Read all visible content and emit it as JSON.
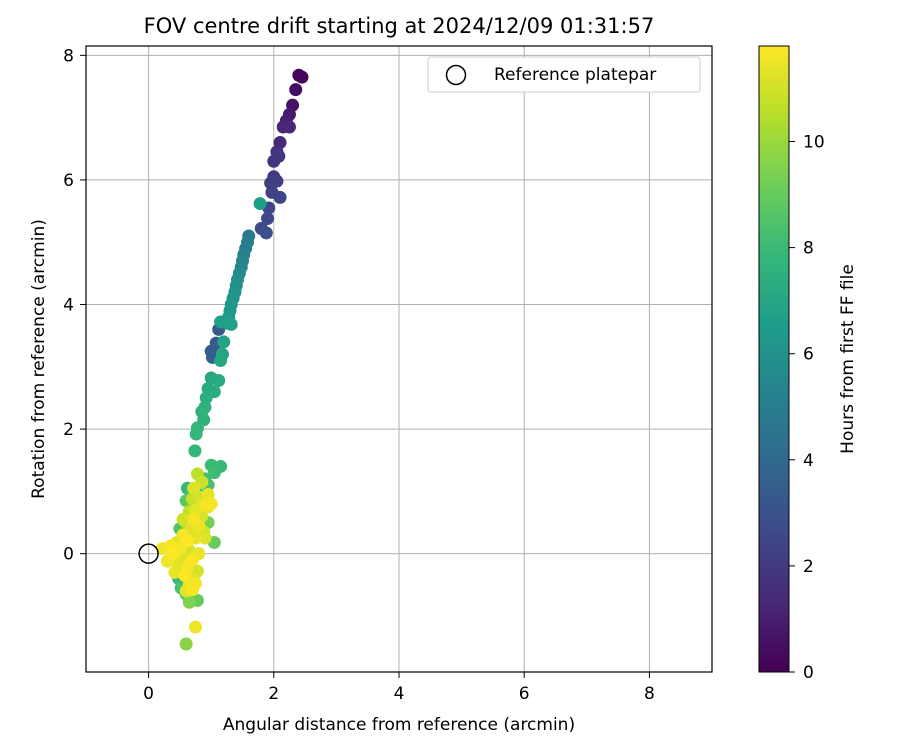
{
  "chart_data": {
    "type": "scatter",
    "title": "FOV centre drift starting at 2024/12/09 01:31:57",
    "xlabel": "Angular distance from reference (arcmin)",
    "ylabel": "Rotation from reference (arcmin)",
    "xlim": [
      -1,
      9
    ],
    "ylim": [
      -1.9,
      8.15
    ],
    "xticks": [
      0,
      2,
      4,
      6,
      8
    ],
    "yticks": [
      0,
      2,
      4,
      6,
      8
    ],
    "grid": true,
    "legend": {
      "position": "top-right",
      "entries": [
        "Reference platepar"
      ]
    },
    "reference_point": {
      "x": 0,
      "y": 0,
      "label": "Reference platepar"
    },
    "colorbar": {
      "label": "Hours from first FF file",
      "range": [
        0,
        11.8
      ],
      "ticks": [
        0,
        2,
        4,
        6,
        8,
        10
      ],
      "colormap": "viridis"
    },
    "colormap_stops": [
      "#440154",
      "#482878",
      "#3e4989",
      "#31688e",
      "#26828e",
      "#1f9e89",
      "#35b779",
      "#6ece58",
      "#b5de2b",
      "#fde725"
    ],
    "points": [
      {
        "x": 2.4,
        "y": 7.68,
        "h": 0.1
      },
      {
        "x": 2.45,
        "y": 7.65,
        "h": 0.2
      },
      {
        "x": 2.35,
        "y": 7.45,
        "h": 0.4
      },
      {
        "x": 2.3,
        "y": 7.2,
        "h": 0.6
      },
      {
        "x": 2.25,
        "y": 7.05,
        "h": 0.8
      },
      {
        "x": 2.2,
        "y": 6.95,
        "h": 1.0
      },
      {
        "x": 2.15,
        "y": 6.85,
        "h": 1.2
      },
      {
        "x": 2.25,
        "y": 6.85,
        "h": 1.3
      },
      {
        "x": 2.1,
        "y": 6.6,
        "h": 1.4
      },
      {
        "x": 2.05,
        "y": 6.45,
        "h": 1.6
      },
      {
        "x": 2.0,
        "y": 6.3,
        "h": 1.8
      },
      {
        "x": 2.08,
        "y": 6.38,
        "h": 1.9
      },
      {
        "x": 2.0,
        "y": 6.05,
        "h": 2.0
      },
      {
        "x": 1.95,
        "y": 5.95,
        "h": 2.1
      },
      {
        "x": 2.05,
        "y": 5.98,
        "h": 2.2
      },
      {
        "x": 1.97,
        "y": 5.8,
        "h": 2.3
      },
      {
        "x": 2.1,
        "y": 5.72,
        "h": 2.4
      },
      {
        "x": 1.92,
        "y": 5.55,
        "h": 2.5
      },
      {
        "x": 1.9,
        "y": 5.38,
        "h": 2.6
      },
      {
        "x": 1.8,
        "y": 5.22,
        "h": 2.7
      },
      {
        "x": 1.88,
        "y": 5.15,
        "h": 2.9
      },
      {
        "x": 1.78,
        "y": 5.62,
        "h": 6.6
      },
      {
        "x": 1.6,
        "y": 5.1,
        "h": 4.8
      },
      {
        "x": 1.58,
        "y": 5.0,
        "h": 5.0
      },
      {
        "x": 1.55,
        "y": 4.9,
        "h": 5.1
      },
      {
        "x": 1.52,
        "y": 4.8,
        "h": 5.2
      },
      {
        "x": 1.5,
        "y": 4.7,
        "h": 5.4
      },
      {
        "x": 1.48,
        "y": 4.6,
        "h": 5.5
      },
      {
        "x": 1.45,
        "y": 4.5,
        "h": 5.6
      },
      {
        "x": 1.42,
        "y": 4.4,
        "h": 5.8
      },
      {
        "x": 1.4,
        "y": 4.3,
        "h": 5.9
      },
      {
        "x": 1.38,
        "y": 4.2,
        "h": 6.0
      },
      {
        "x": 1.35,
        "y": 4.1,
        "h": 6.1
      },
      {
        "x": 1.32,
        "y": 4.0,
        "h": 6.2
      },
      {
        "x": 1.3,
        "y": 3.9,
        "h": 6.3
      },
      {
        "x": 1.28,
        "y": 3.8,
        "h": 6.4
      },
      {
        "x": 1.25,
        "y": 3.7,
        "h": 6.5
      },
      {
        "x": 1.15,
        "y": 3.72,
        "h": 6.6
      },
      {
        "x": 1.32,
        "y": 3.68,
        "h": 6.7
      },
      {
        "x": 1.12,
        "y": 3.6,
        "h": 3.2
      },
      {
        "x": 1.08,
        "y": 3.38,
        "h": 3.4
      },
      {
        "x": 1.0,
        "y": 3.25,
        "h": 3.5
      },
      {
        "x": 1.02,
        "y": 3.15,
        "h": 3.6
      },
      {
        "x": 1.2,
        "y": 3.4,
        "h": 6.8
      },
      {
        "x": 1.18,
        "y": 3.2,
        "h": 6.9
      },
      {
        "x": 1.15,
        "y": 3.1,
        "h": 7.0
      },
      {
        "x": 1.0,
        "y": 2.82,
        "h": 7.1
      },
      {
        "x": 1.12,
        "y": 2.78,
        "h": 7.2
      },
      {
        "x": 0.95,
        "y": 2.65,
        "h": 7.2
      },
      {
        "x": 1.05,
        "y": 2.6,
        "h": 7.3
      },
      {
        "x": 0.92,
        "y": 2.5,
        "h": 7.4
      },
      {
        "x": 0.9,
        "y": 2.35,
        "h": 7.5
      },
      {
        "x": 0.85,
        "y": 2.28,
        "h": 7.6
      },
      {
        "x": 0.88,
        "y": 2.15,
        "h": 7.6
      },
      {
        "x": 0.78,
        "y": 2.02,
        "h": 7.7
      },
      {
        "x": 0.76,
        "y": 1.92,
        "h": 7.8
      },
      {
        "x": 0.74,
        "y": 1.65,
        "h": 7.8
      },
      {
        "x": 1.15,
        "y": 1.4,
        "h": 7.9
      },
      {
        "x": 1.0,
        "y": 1.42,
        "h": 8.0
      },
      {
        "x": 1.05,
        "y": 1.3,
        "h": 8.1
      },
      {
        "x": 0.9,
        "y": 1.2,
        "h": 8.2
      },
      {
        "x": 0.62,
        "y": 1.05,
        "h": 7.9
      },
      {
        "x": 0.7,
        "y": 1.0,
        "h": 8.3
      },
      {
        "x": 0.95,
        "y": 1.1,
        "h": 8.4
      },
      {
        "x": 0.8,
        "y": 0.95,
        "h": 8.6
      },
      {
        "x": 0.6,
        "y": 0.85,
        "h": 8.7
      },
      {
        "x": 0.88,
        "y": 0.75,
        "h": 8.8
      },
      {
        "x": 0.5,
        "y": 0.4,
        "h": 8.5
      },
      {
        "x": 0.55,
        "y": 0.25,
        "h": 8.8
      },
      {
        "x": 1.05,
        "y": 0.18,
        "h": 9.0
      },
      {
        "x": 0.95,
        "y": 0.5,
        "h": 9.3
      },
      {
        "x": 0.48,
        "y": -0.4,
        "h": 8.0
      },
      {
        "x": 0.52,
        "y": -0.55,
        "h": 8.3
      },
      {
        "x": 0.6,
        "y": -0.65,
        "h": 8.5
      },
      {
        "x": 0.78,
        "y": -0.75,
        "h": 9.0
      },
      {
        "x": 0.65,
        "y": -0.78,
        "h": 9.5
      },
      {
        "x": 0.6,
        "y": -1.45,
        "h": 9.7
      },
      {
        "x": 0.75,
        "y": -1.18,
        "h": 11.5
      },
      {
        "x": 0.78,
        "y": 1.28,
        "h": 10.6
      },
      {
        "x": 0.85,
        "y": 1.15,
        "h": 10.9
      },
      {
        "x": 0.72,
        "y": 1.05,
        "h": 11.2
      },
      {
        "x": 0.95,
        "y": 0.95,
        "h": 11.4
      },
      {
        "x": 0.82,
        "y": 0.9,
        "h": 11.0
      },
      {
        "x": 0.7,
        "y": 0.88,
        "h": 10.8
      },
      {
        "x": 0.9,
        "y": 0.78,
        "h": 11.6
      },
      {
        "x": 0.75,
        "y": 0.7,
        "h": 11.3
      },
      {
        "x": 0.65,
        "y": 0.68,
        "h": 10.7
      },
      {
        "x": 0.85,
        "y": 0.6,
        "h": 11.1
      },
      {
        "x": 0.72,
        "y": 0.55,
        "h": 11.7
      },
      {
        "x": 0.6,
        "y": 0.5,
        "h": 10.5
      },
      {
        "x": 0.8,
        "y": 0.45,
        "h": 11.5
      },
      {
        "x": 0.68,
        "y": 0.4,
        "h": 11.2
      },
      {
        "x": 0.88,
        "y": 0.35,
        "h": 11.0
      },
      {
        "x": 0.55,
        "y": 0.3,
        "h": 11.6
      },
      {
        "x": 0.75,
        "y": 0.25,
        "h": 11.4
      },
      {
        "x": 0.62,
        "y": 0.2,
        "h": 11.8
      },
      {
        "x": 0.45,
        "y": 0.18,
        "h": 11.3
      },
      {
        "x": 0.35,
        "y": 0.12,
        "h": 11.7
      },
      {
        "x": 0.22,
        "y": 0.08,
        "h": 11.5
      },
      {
        "x": 0.5,
        "y": 0.08,
        "h": 11.6
      },
      {
        "x": 0.65,
        "y": 0.05,
        "h": 11.1
      },
      {
        "x": 0.8,
        "y": 0.0,
        "h": 11.4
      },
      {
        "x": 0.4,
        "y": 0.0,
        "h": 11.8
      },
      {
        "x": 0.55,
        "y": -0.05,
        "h": 11.2
      },
      {
        "x": 0.7,
        "y": -0.1,
        "h": 11.7
      },
      {
        "x": 0.3,
        "y": -0.12,
        "h": 11.5
      },
      {
        "x": 0.48,
        "y": -0.18,
        "h": 11.3
      },
      {
        "x": 0.62,
        "y": -0.22,
        "h": 11.6
      },
      {
        "x": 0.78,
        "y": -0.28,
        "h": 11.0
      },
      {
        "x": 0.42,
        "y": -0.3,
        "h": 11.4
      },
      {
        "x": 0.58,
        "y": -0.35,
        "h": 11.8
      },
      {
        "x": 0.72,
        "y": -0.42,
        "h": 11.2
      },
      {
        "x": 0.65,
        "y": -0.5,
        "h": 11.5
      },
      {
        "x": 0.7,
        "y": -0.58,
        "h": 11.7
      },
      {
        "x": 0.6,
        "y": -0.6,
        "h": 11.3
      },
      {
        "x": 0.75,
        "y": -0.48,
        "h": 11.6
      },
      {
        "x": 0.55,
        "y": 0.55,
        "h": 11.0
      },
      {
        "x": 0.95,
        "y": 0.75,
        "h": 11.4
      },
      {
        "x": 1.0,
        "y": 0.8,
        "h": 11.7
      },
      {
        "x": 0.9,
        "y": 0.25,
        "h": 11.2
      }
    ]
  }
}
